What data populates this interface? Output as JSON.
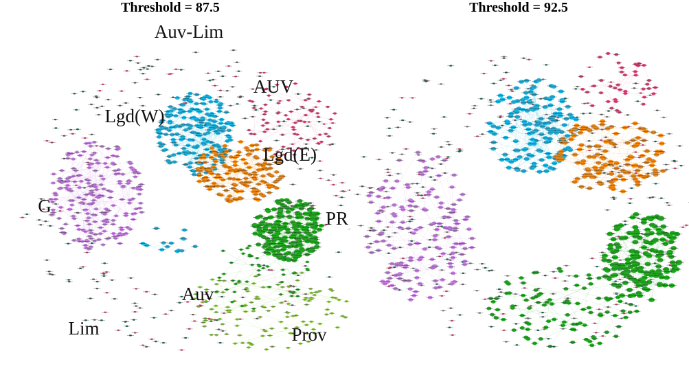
{
  "panels": [
    {
      "title": "Threshold = 87.5",
      "labels": [
        "Auv-Lim",
        "AUV",
        "Lgd(W)",
        "Lgd(E)",
        "G",
        "PR",
        "Auv",
        "Lim",
        "Prov"
      ]
    },
    {
      "title": "Threshold = 92.5"
    }
  ]
}
